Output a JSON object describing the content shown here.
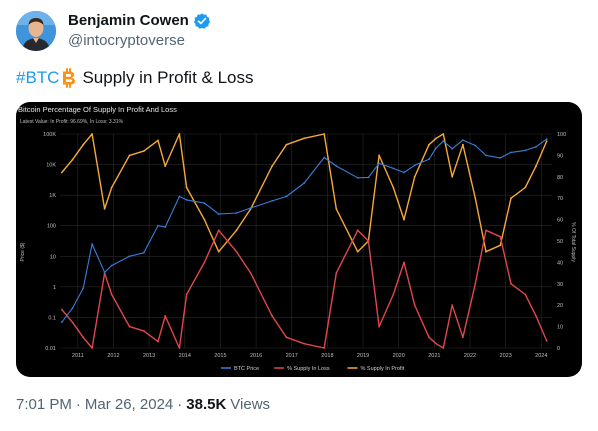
{
  "author": {
    "display_name": "Benjamin Cowen",
    "handle": "@intocryptoverse",
    "avatar_icon": "profile-photo",
    "verified_icon": "verified-badge-icon",
    "verified_color": "#1d9bf0"
  },
  "tweet": {
    "hashtag": "#BTC",
    "emoji_icon": "bitcoin-icon",
    "text": "Supply in Profit & Loss"
  },
  "meta": {
    "time": "7:01 PM",
    "date": "Mar 26, 2024",
    "views_count": "38.5K",
    "views_label": "Views"
  },
  "chart_data": {
    "type": "line",
    "title": "Bitcoin Percentage Of Supply In Profit And Loss",
    "subtitle": "Latest Value: In Profit: 96.69%, In Loss: 3.31%",
    "ylabel_left": "Price ($)",
    "ylabel_right": "% Of Total Supply",
    "y_left_scale": "log",
    "y_left_ticks": [
      "100K",
      "10K",
      "1K",
      "100",
      "10",
      "1",
      "0.1",
      "0.01"
    ],
    "y_right_ticks": [
      "100",
      "90",
      "80",
      "70",
      "60",
      "50",
      "40",
      "30",
      "20",
      "10",
      "0"
    ],
    "x_ticks": [
      "2011",
      "2012",
      "2013",
      "2014",
      "2015",
      "2016",
      "2017",
      "2018",
      "2019",
      "2020",
      "2021",
      "2022",
      "2023",
      "2024"
    ],
    "grid": true,
    "legend_position": "bottom",
    "series": [
      {
        "name": "BTC Price",
        "color": "#3b7dd8",
        "axis": "left",
        "x": [
          2010.6,
          2010.9,
          2011.2,
          2011.45,
          2011.8,
          2012.0,
          2012.5,
          2012.9,
          2013.3,
          2013.5,
          2013.9,
          2014.1,
          2014.6,
          2015.0,
          2015.5,
          2015.9,
          2016.5,
          2016.9,
          2017.4,
          2017.96,
          2018.3,
          2018.9,
          2019.2,
          2019.5,
          2019.9,
          2020.2,
          2020.5,
          2020.9,
          2021.1,
          2021.3,
          2021.55,
          2021.85,
          2022.2,
          2022.5,
          2022.9,
          2023.2,
          2023.6,
          2023.9,
          2024.2
        ],
        "y": [
          0.07,
          0.2,
          0.9,
          25,
          3,
          5,
          10,
          13,
          100,
          90,
          900,
          700,
          550,
          240,
          260,
          380,
          650,
          900,
          2500,
          17000,
          9000,
          3700,
          3800,
          11000,
          7500,
          5500,
          9500,
          15000,
          35000,
          58000,
          33000,
          63000,
          42000,
          20000,
          16500,
          25000,
          29000,
          38000,
          68000
        ]
      },
      {
        "name": "% Supply In Loss",
        "color": "#e0474c",
        "axis": "right",
        "x": [
          2010.6,
          2010.9,
          2011.2,
          2011.45,
          2011.8,
          2012.0,
          2012.5,
          2012.9,
          2013.3,
          2013.5,
          2013.9,
          2014.1,
          2014.6,
          2015.0,
          2015.5,
          2015.9,
          2016.5,
          2016.9,
          2017.4,
          2017.96,
          2018.3,
          2018.9,
          2019.2,
          2019.5,
          2019.9,
          2020.2,
          2020.5,
          2020.9,
          2021.1,
          2021.3,
          2021.55,
          2021.85,
          2022.2,
          2022.5,
          2022.9,
          2023.2,
          2023.6,
          2023.9,
          2024.2
        ],
        "y": [
          18,
          12,
          5,
          0,
          35,
          25,
          10,
          8,
          3,
          15,
          0,
          25,
          40,
          55,
          45,
          35,
          15,
          5,
          2,
          0,
          35,
          55,
          50,
          10,
          25,
          40,
          20,
          5,
          2,
          0,
          20,
          5,
          30,
          55,
          52,
          30,
          25,
          15,
          3.31
        ]
      },
      {
        "name": "% Supply In Profit",
        "color": "#f5a93a",
        "axis": "right",
        "x": [
          2010.6,
          2010.9,
          2011.2,
          2011.45,
          2011.8,
          2012.0,
          2012.5,
          2012.9,
          2013.3,
          2013.5,
          2013.9,
          2014.1,
          2014.6,
          2015.0,
          2015.5,
          2015.9,
          2016.5,
          2016.9,
          2017.4,
          2017.96,
          2018.3,
          2018.9,
          2019.2,
          2019.5,
          2019.9,
          2020.2,
          2020.5,
          2020.9,
          2021.1,
          2021.3,
          2021.55,
          2021.85,
          2022.2,
          2022.5,
          2022.9,
          2023.2,
          2023.6,
          2023.9,
          2024.2
        ],
        "y": [
          82,
          88,
          95,
          100,
          65,
          75,
          90,
          92,
          97,
          85,
          100,
          75,
          60,
          45,
          55,
          65,
          85,
          95,
          98,
          100,
          65,
          45,
          50,
          90,
          75,
          60,
          80,
          95,
          98,
          100,
          80,
          95,
          70,
          45,
          48,
          70,
          75,
          85,
          96.69
        ]
      }
    ]
  }
}
